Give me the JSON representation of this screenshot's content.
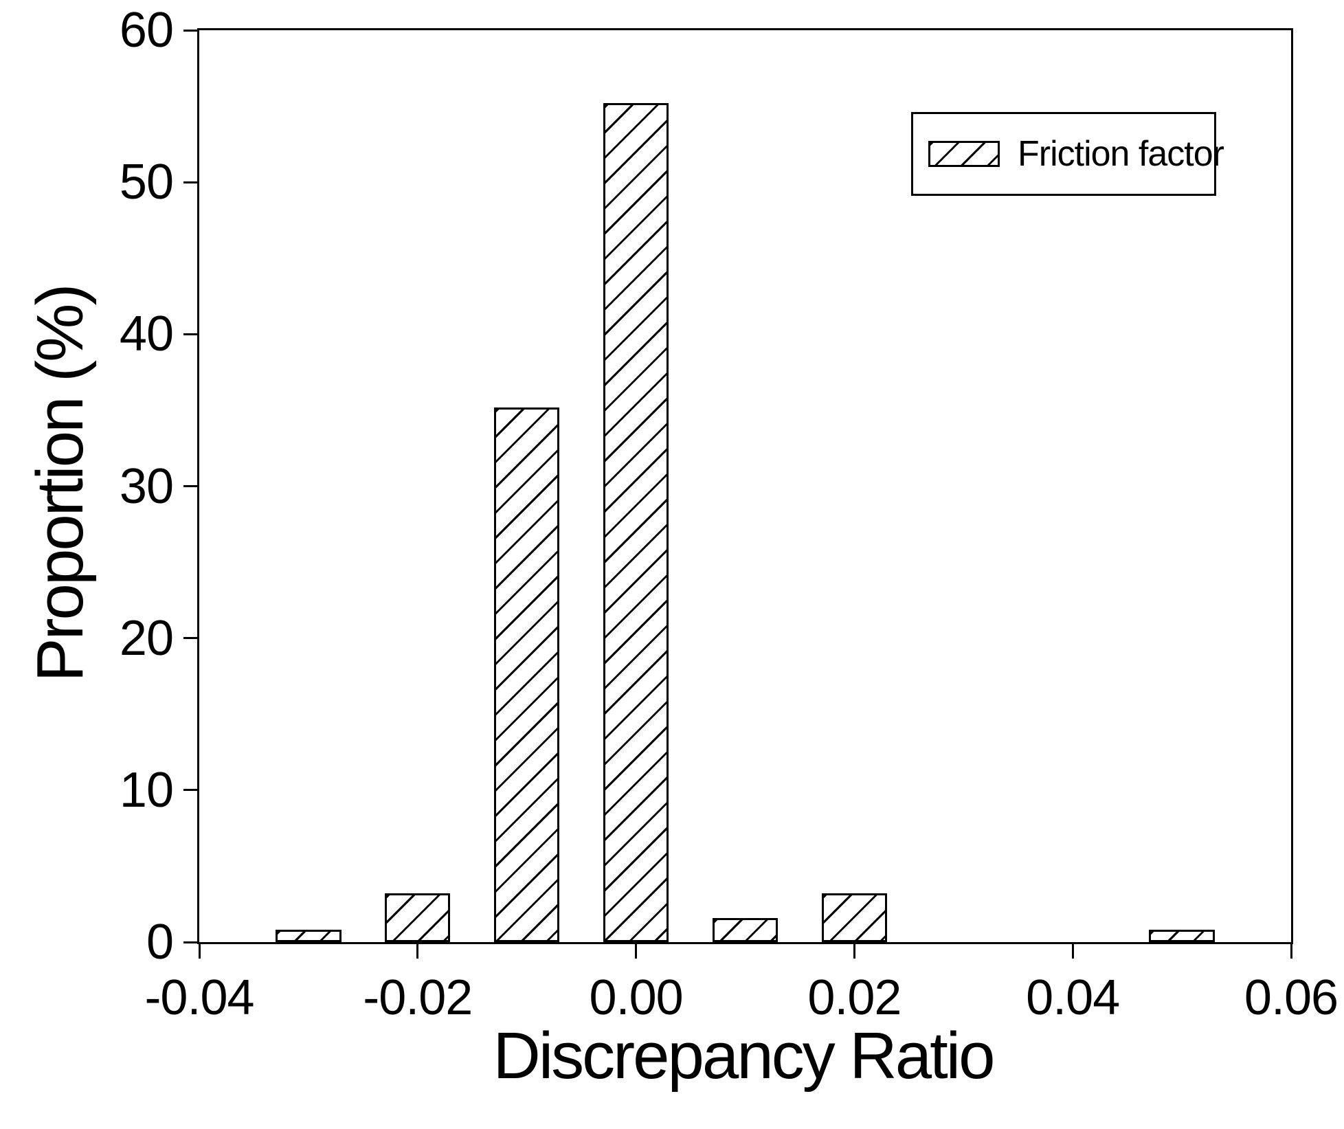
{
  "figure": {
    "xlabel": "Discrepancy Ratio",
    "ylabel": "Proportion (%)",
    "legend_label": "Friction factor"
  },
  "chart_data": {
    "type": "bar",
    "title": "",
    "xlabel": "Discrepancy Ratio",
    "ylabel": "Proportion (%)",
    "series": [
      {
        "name": "Friction factor",
        "x": [
          -0.03,
          -0.02,
          -0.01,
          0.0,
          0.01,
          0.02,
          0.05
        ],
        "values": [
          0.8,
          3.2,
          35.2,
          55.2,
          1.6,
          3.2,
          0.8
        ]
      }
    ],
    "bar_width": 0.006,
    "bar_style": "white fill with black diagonal hatch, black outline",
    "xlim": [
      -0.04,
      0.06
    ],
    "ylim": [
      0,
      60
    ],
    "x_tick_values": [
      -0.04,
      -0.02,
      0.0,
      0.02,
      0.04,
      0.06
    ],
    "x_tick_labels": [
      "-0.04",
      "-0.02",
      "0.00",
      "0.02",
      "0.04",
      "0.06"
    ],
    "y_tick_values": [
      0,
      10,
      20,
      30,
      40,
      50,
      60
    ],
    "y_tick_labels": [
      "0",
      "10",
      "20",
      "30",
      "40",
      "50",
      "60"
    ],
    "grid": false,
    "legend": {
      "entries": [
        "Friction factor"
      ],
      "position": "top-right",
      "swatch": "diagonal-hatch"
    },
    "colors": {
      "stroke": "#000000",
      "fill": "#ffffff",
      "text": "#000000",
      "background": "#ffffff"
    }
  }
}
